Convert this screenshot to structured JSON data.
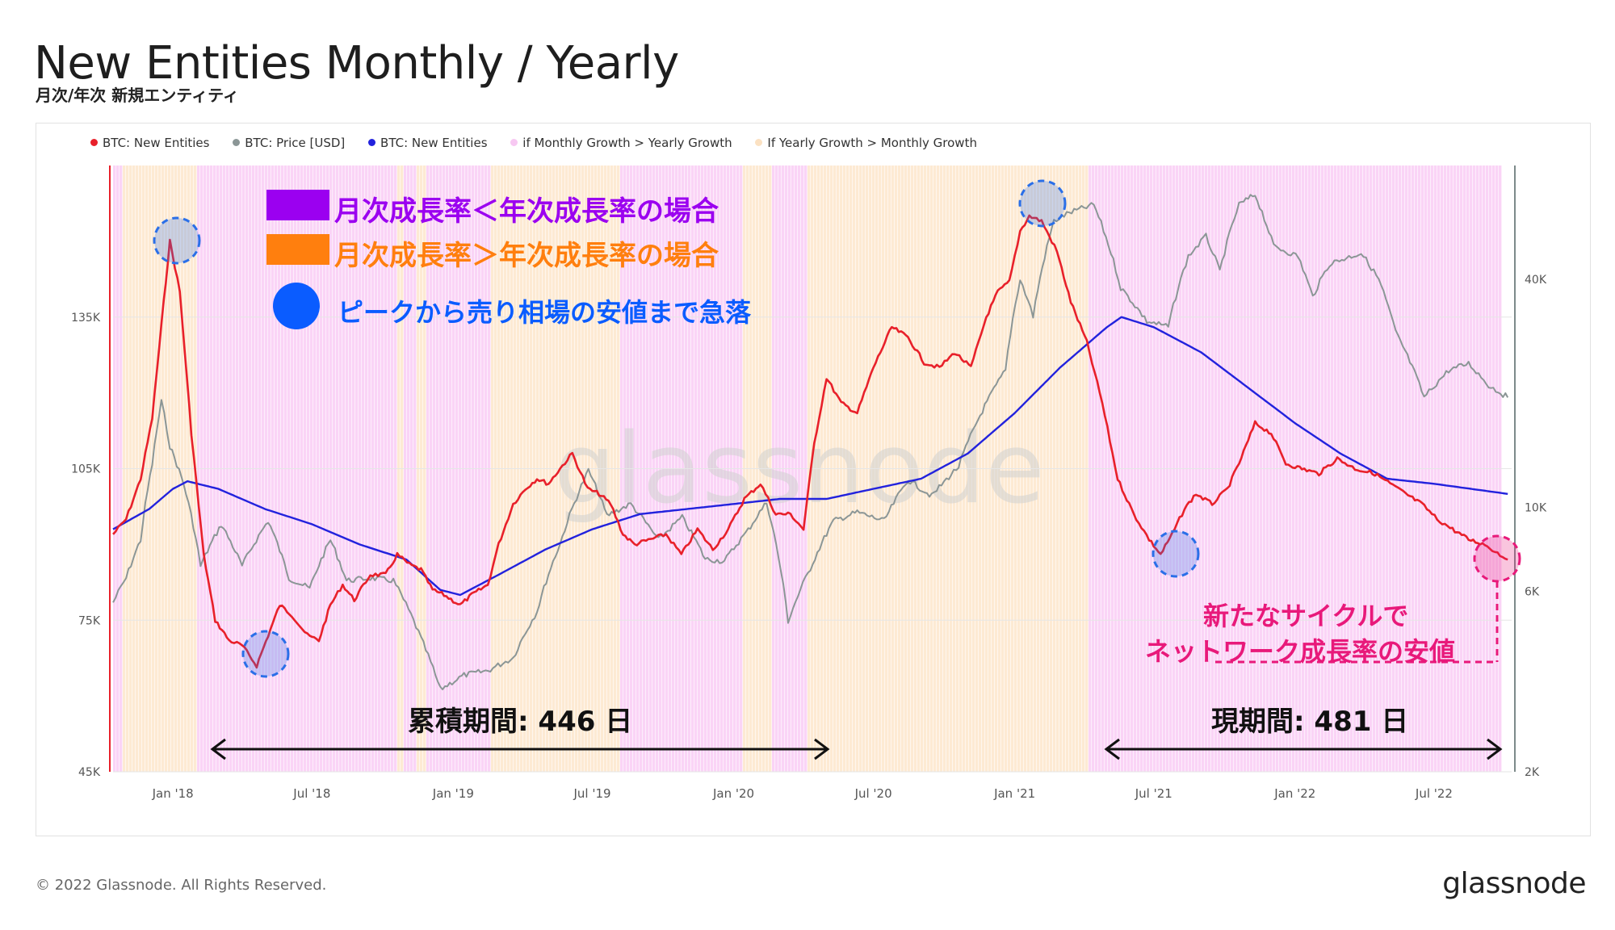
{
  "header": {
    "title": "New Entities Monthly / Yearly",
    "subtitle": "月次/年次 新規エンティティ"
  },
  "legend": [
    {
      "label": "BTC: New Entities",
      "color": "#e8202a"
    },
    {
      "label": "BTC: Price [USD]",
      "color": "#8b9696"
    },
    {
      "label": "BTC: New Entities",
      "color": "#2222dd"
    },
    {
      "label": "if Monthly Growth > Yearly Growth",
      "color": "#f7c8f2"
    },
    {
      "label": "If Yearly Growth > Monthly Growth",
      "color": "#fbe1c2"
    }
  ],
  "annotations": {
    "purple_text": "月次成長率＜年次成長率の場合",
    "orange_text": "月次成長率＞年次成長率の場合",
    "blue_text": "ピークから売り相場の安値まで急落",
    "accum_label": "累積期間: 446 日",
    "current_label": "現期間: 481 日",
    "new_cycle_line1": "新たなサイクルで",
    "new_cycle_line2": "ネットワーク成長率の安値",
    "watermark": "glassnode",
    "colors": {
      "purple": "#9b00f0",
      "orange": "#ff7f0e",
      "blue": "#0a5cff",
      "pink": "#e8197a"
    }
  },
  "footer": {
    "copyright": "© 2022 Glassnode. All Rights Reserved.",
    "brand": "glassnode"
  },
  "chart_data": {
    "type": "line",
    "x_ticks": [
      "Jan '18",
      "Jul '18",
      "Jan '19",
      "Jul '19",
      "Jan '20",
      "Jul '20",
      "Jan '21",
      "Jul '21",
      "Jan '22",
      "Jul '22"
    ],
    "y_left_ticks": [
      "45K",
      "75K",
      "105K",
      "135K"
    ],
    "y_left_tick_values": [
      45000,
      75000,
      105000,
      135000
    ],
    "y_right_ticks": [
      "2K",
      "6K",
      "10K",
      "40K"
    ],
    "y_right_tick_values": [
      2000,
      6000,
      10000,
      40000
    ],
    "y_right_scale": "log",
    "x_range": [
      "2017-10-15",
      "2022-10-10"
    ],
    "y_left_range": [
      45000,
      165000
    ],
    "y_right_range": [
      2000,
      80000
    ],
    "series": [
      {
        "name": "BTC: New Entities",
        "axis": "left",
        "color": "#e8202a",
        "x": [
          "2017-10-15",
          "2017-11-01",
          "2017-11-20",
          "2017-12-05",
          "2017-12-20",
          "2017-12-28",
          "2018-01-10",
          "2018-01-25",
          "2018-02-10",
          "2018-02-25",
          "2018-03-15",
          "2018-04-01",
          "2018-04-20",
          "2018-05-05",
          "2018-05-20",
          "2018-06-05",
          "2018-06-25",
          "2018-07-10",
          "2018-07-25",
          "2018-08-10",
          "2018-08-25",
          "2018-09-15",
          "2018-10-05",
          "2018-10-20",
          "2018-11-05",
          "2018-11-20",
          "2018-12-05",
          "2018-12-20",
          "2019-01-10",
          "2019-01-25",
          "2019-02-15",
          "2019-03-01",
          "2019-03-20",
          "2019-04-05",
          "2019-04-20",
          "2019-05-05",
          "2019-05-20",
          "2019-06-05",
          "2019-06-25",
          "2019-07-10",
          "2019-07-25",
          "2019-08-10",
          "2019-08-25",
          "2019-09-15",
          "2019-10-05",
          "2019-10-25",
          "2019-11-15",
          "2019-12-05",
          "2019-12-25",
          "2020-01-15",
          "2020-02-05",
          "2020-02-25",
          "2020-03-15",
          "2020-04-01",
          "2020-04-15",
          "2020-05-01",
          "2020-05-20",
          "2020-06-10",
          "2020-07-01",
          "2020-07-25",
          "2020-08-15",
          "2020-09-05",
          "2020-09-25",
          "2020-10-15",
          "2020-11-05",
          "2020-11-25",
          "2020-12-10",
          "2020-12-25",
          "2021-01-08",
          "2021-01-20",
          "2021-02-05",
          "2021-02-25",
          "2021-03-15",
          "2021-04-05",
          "2021-04-25",
          "2021-05-15",
          "2021-06-05",
          "2021-06-25",
          "2021-07-10",
          "2021-07-25",
          "2021-08-10",
          "2021-08-25",
          "2021-09-15",
          "2021-10-05",
          "2021-10-20",
          "2021-11-10",
          "2021-12-01",
          "2021-12-20",
          "2022-01-10",
          "2022-02-01",
          "2022-02-25",
          "2022-03-20",
          "2022-04-15",
          "2022-05-05",
          "2022-05-25",
          "2022-06-15",
          "2022-07-05",
          "2022-07-25",
          "2022-08-15",
          "2022-09-05",
          "2022-09-25",
          "2022-10-05"
        ],
        "values": [
          92000,
          95000,
          103000,
          115000,
          138000,
          150000,
          140000,
          112000,
          88000,
          75000,
          71000,
          70000,
          66000,
          72000,
          78000,
          76000,
          72000,
          71000,
          78000,
          82000,
          79000,
          84000,
          84000,
          88000,
          86000,
          85000,
          81000,
          80000,
          78000,
          80000,
          82000,
          90000,
          98000,
          101000,
          103000,
          102000,
          105000,
          108000,
          101000,
          100000,
          98000,
          92000,
          90000,
          91000,
          92000,
          88000,
          93000,
          89000,
          93000,
          99000,
          102000,
          96000,
          96000,
          93000,
          110000,
          123000,
          118000,
          116000,
          125000,
          133000,
          131000,
          126000,
          125000,
          128000,
          125000,
          135000,
          140000,
          142000,
          152000,
          155000,
          154000,
          148000,
          138000,
          130000,
          118000,
          103000,
          96000,
          91000,
          88000,
          92000,
          97000,
          100000,
          98000,
          101000,
          106000,
          114000,
          112000,
          106000,
          105000,
          104000,
          107000,
          105000,
          104000,
          102000,
          100000,
          98000,
          95000,
          93000,
          91000,
          90000,
          88000,
          87000
        ]
      },
      {
        "name": "BTC: Price [USD]",
        "axis": "right",
        "color": "#8b9696",
        "x": [
          "2017-10-15",
          "2017-11-01",
          "2017-11-20",
          "2017-12-05",
          "2017-12-17",
          "2017-12-28",
          "2018-01-15",
          "2018-02-06",
          "2018-03-05",
          "2018-04-01",
          "2018-05-05",
          "2018-06-01",
          "2018-06-28",
          "2018-07-25",
          "2018-08-15",
          "2018-09-15",
          "2018-10-15",
          "2018-11-20",
          "2018-12-15",
          "2019-01-15",
          "2019-02-15",
          "2019-03-20",
          "2019-04-20",
          "2019-05-20",
          "2019-06-26",
          "2019-07-20",
          "2019-08-20",
          "2019-09-25",
          "2019-10-26",
          "2019-11-25",
          "2019-12-20",
          "2020-01-20",
          "2020-02-13",
          "2020-03-12",
          "2020-04-10",
          "2020-05-10",
          "2020-06-10",
          "2020-07-15",
          "2020-08-15",
          "2020-09-15",
          "2020-10-20",
          "2020-11-20",
          "2020-12-20",
          "2021-01-08",
          "2021-01-25",
          "2021-02-21",
          "2021-03-13",
          "2021-04-14",
          "2021-05-19",
          "2021-06-22",
          "2021-07-20",
          "2021-08-15",
          "2021-09-07",
          "2021-09-25",
          "2021-10-20",
          "2021-11-10",
          "2021-12-04",
          "2022-01-05",
          "2022-01-24",
          "2022-02-15",
          "2022-03-28",
          "2022-04-20",
          "2022-05-12",
          "2022-06-18",
          "2022-07-20",
          "2022-08-15",
          "2022-09-10",
          "2022-10-05"
        ],
        "values": [
          5600,
          6500,
          8200,
          13000,
          19000,
          14500,
          11500,
          7000,
          9000,
          7000,
          9200,
          6500,
          6100,
          8200,
          6400,
          6500,
          6400,
          4500,
          3300,
          3600,
          3700,
          4000,
          5300,
          8000,
          12500,
          9500,
          10200,
          8200,
          9400,
          7300,
          7200,
          8700,
          10300,
          5000,
          6900,
          9200,
          9700,
          9200,
          11800,
          10700,
          12800,
          18000,
          23000,
          40000,
          32000,
          57000,
          60000,
          63000,
          38000,
          31000,
          30000,
          46000,
          52000,
          42000,
          63000,
          67000,
          49000,
          46000,
          36000,
          44000,
          47000,
          40000,
          29000,
          19500,
          23000,
          24000,
          21000,
          19500
        ]
      },
      {
        "name": "BTC: New Entities",
        "axis": "left",
        "color": "#2222dd",
        "x": [
          "2017-10-15",
          "2017-12-01",
          "2018-01-01",
          "2018-01-20",
          "2018-03-01",
          "2018-05-01",
          "2018-07-01",
          "2018-09-01",
          "2018-11-01",
          "2018-12-15",
          "2019-01-10",
          "2019-03-01",
          "2019-05-01",
          "2019-07-01",
          "2019-09-01",
          "2019-11-01",
          "2020-01-01",
          "2020-03-01",
          "2020-05-01",
          "2020-07-01",
          "2020-09-01",
          "2020-11-01",
          "2021-01-01",
          "2021-03-01",
          "2021-05-01",
          "2021-05-20",
          "2021-07-01",
          "2021-09-01",
          "2021-11-01",
          "2022-01-01",
          "2022-03-01",
          "2022-05-01",
          "2022-07-01",
          "2022-10-05"
        ],
        "values": [
          93000,
          97000,
          101000,
          102500,
          101000,
          97000,
          94000,
          90000,
          87000,
          81000,
          80000,
          84000,
          89000,
          93000,
          96000,
          97000,
          98000,
          99000,
          99000,
          101000,
          103000,
          108000,
          116000,
          125000,
          133000,
          135000,
          133000,
          128000,
          121000,
          114000,
          108000,
          103000,
          102000,
          100000
        ]
      }
    ],
    "bands_note": "background shading: pink when Monthly Growth > Yearly Growth, peach when Yearly Growth > Monthly Growth"
  }
}
